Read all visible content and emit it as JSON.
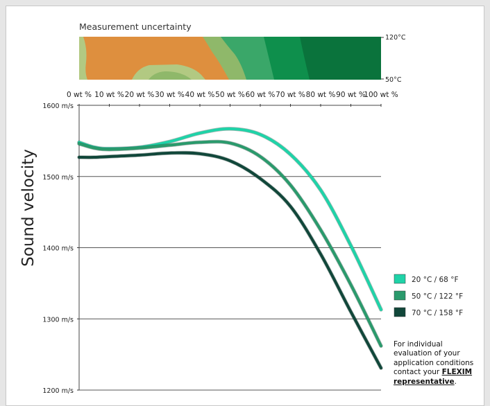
{
  "uncertainty": {
    "title": "Measurement uncertainty",
    "temp_top": "120°C",
    "temp_bottom": "50°C",
    "colors": {
      "high": "#de8f3e",
      "mid": "#8fb86a",
      "light": "#b2c982",
      "lowlight": "#3aa769",
      "low": "#0e8f4c",
      "lowest": "#0a733c"
    }
  },
  "chart_data": {
    "type": "line",
    "title": "",
    "xlabel": "",
    "ylabel": "Sound velocity",
    "x_ticks": [
      "0 wt %",
      "10 wt %",
      "20 wt %",
      "30 wt %",
      "40 wt %",
      "50 wt %",
      "60 wt %",
      "70 wt %",
      "80 wt %",
      "90 wt %",
      "100 wt %"
    ],
    "y_ticks": [
      "1600 m/s",
      "1500 m/s",
      "1400 m/s",
      "1300 m/s",
      "1200 m/s"
    ],
    "xlim": [
      0,
      100
    ],
    "ylim": [
      1200,
      1600
    ],
    "grid": "horizontal",
    "legend_position": "right",
    "series": [
      {
        "name": "20 °C / 68 °F",
        "color": "#1fd3a8",
        "x": [
          0,
          5,
          10,
          20,
          30,
          40,
          50,
          60,
          70,
          80,
          90,
          100
        ],
        "y": [
          1548,
          1541,
          1539,
          1541,
          1549,
          1561,
          1567,
          1559,
          1531,
          1481,
          1403,
          1313
        ]
      },
      {
        "name": "50 °C / 122 °F",
        "color": "#2a9a6c",
        "x": [
          0,
          5,
          10,
          20,
          30,
          40,
          50,
          60,
          70,
          80,
          90,
          100
        ],
        "y": [
          1546,
          1540,
          1538,
          1540,
          1544,
          1548,
          1547,
          1528,
          1488,
          1425,
          1348,
          1262
        ]
      },
      {
        "name": "70 °C / 158 °F",
        "color": "#11473a",
        "x": [
          0,
          5,
          10,
          20,
          30,
          40,
          50,
          60,
          70,
          80,
          90,
          100
        ],
        "y": [
          1527,
          1527,
          1528,
          1530,
          1533,
          1532,
          1522,
          1497,
          1458,
          1391,
          1310,
          1231
        ]
      }
    ]
  },
  "note": {
    "line1": "For individual",
    "line2": "evaluation of your",
    "line3": "application conditions",
    "line4_prefix": "contact your ",
    "link_part1": "FLEXIM",
    "link_part2": "representative",
    "suffix": "."
  }
}
